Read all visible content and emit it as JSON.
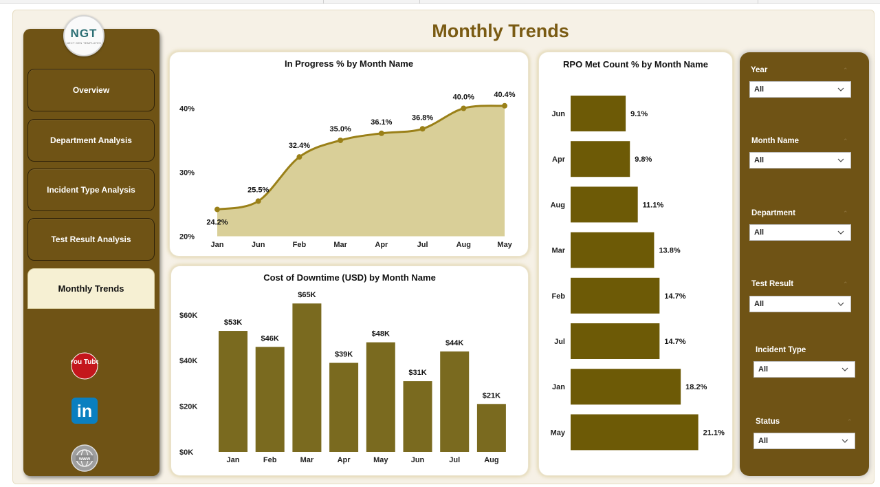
{
  "page": {
    "title": "Monthly Trends"
  },
  "logo": {
    "text": "NGT",
    "tagline": "NEXT GEN TEMPLATES"
  },
  "nav": {
    "items": [
      {
        "label": "Overview",
        "active": false
      },
      {
        "label": "Department Analysis",
        "active": false
      },
      {
        "label": "Incident Type Analysis",
        "active": false
      },
      {
        "label": "Test Result Analysis",
        "active": false
      },
      {
        "label": "Monthly Trends",
        "active": true
      }
    ],
    "social": [
      {
        "icon": "youtube-icon",
        "text": "You Tube"
      },
      {
        "icon": "linkedin-icon",
        "text": "in"
      },
      {
        "icon": "globe-icon",
        "text": "www"
      }
    ]
  },
  "filters": [
    {
      "label": "Year",
      "value": "All"
    },
    {
      "label": "Month Name",
      "value": "All"
    },
    {
      "label": "Department",
      "value": "All"
    },
    {
      "label": "Test Result",
      "value": "All"
    },
    {
      "label": "Incident Type",
      "value": "All"
    },
    {
      "label": "Status",
      "value": "All"
    }
  ],
  "colors": {
    "brand": "#6f5315",
    "area_fill": "#d9cf98",
    "line": "#9a8018",
    "bar_column": "#7a6a1f",
    "bar_horizontal": "#6d5a06",
    "title": "#7a5b13"
  },
  "chart_data": [
    {
      "type": "area",
      "title": "In Progress % by Month Name",
      "categories": [
        "Jan",
        "Jun",
        "Feb",
        "Mar",
        "Apr",
        "Jul",
        "Aug",
        "May"
      ],
      "values": [
        24.2,
        25.5,
        32.4,
        35.0,
        36.1,
        36.8,
        40.0,
        40.4
      ],
      "data_labels": [
        "24.2%",
        "25.5%",
        "32.4%",
        "35.0%",
        "36.1%",
        "36.8%",
        "40.0%",
        "40.4%"
      ],
      "y_ticks": [
        "20%",
        "30%",
        "40%"
      ],
      "ylim": [
        20,
        43
      ],
      "xlabel": "",
      "ylabel": "",
      "grid": false
    },
    {
      "type": "bar",
      "title": "Cost of Downtime (USD) by Month Name",
      "categories": [
        "Jan",
        "Feb",
        "Mar",
        "Apr",
        "May",
        "Jun",
        "Jul",
        "Aug"
      ],
      "values": [
        53,
        46,
        65,
        39,
        48,
        31,
        44,
        21
      ],
      "data_labels": [
        "$53K",
        "$46K",
        "$65K",
        "$39K",
        "$48K",
        "$31K",
        "$44K",
        "$21K"
      ],
      "y_ticks": [
        "$0K",
        "$20K",
        "$40K",
        "$60K"
      ],
      "ylim": [
        0,
        65
      ],
      "xlabel": "",
      "ylabel": "",
      "grid": false
    },
    {
      "type": "bar",
      "orientation": "horizontal",
      "title": "RPO Met Count % by Month Name",
      "categories": [
        "Jun",
        "Apr",
        "Aug",
        "Mar",
        "Feb",
        "Jul",
        "Jan",
        "May"
      ],
      "values": [
        9.1,
        9.8,
        11.1,
        13.8,
        14.7,
        14.7,
        18.2,
        21.1
      ],
      "data_labels": [
        "9.1%",
        "9.8%",
        "11.1%",
        "13.8%",
        "14.7%",
        "14.7%",
        "18.2%",
        "21.1%"
      ],
      "xlabel": "",
      "ylabel": "",
      "grid": false
    }
  ]
}
